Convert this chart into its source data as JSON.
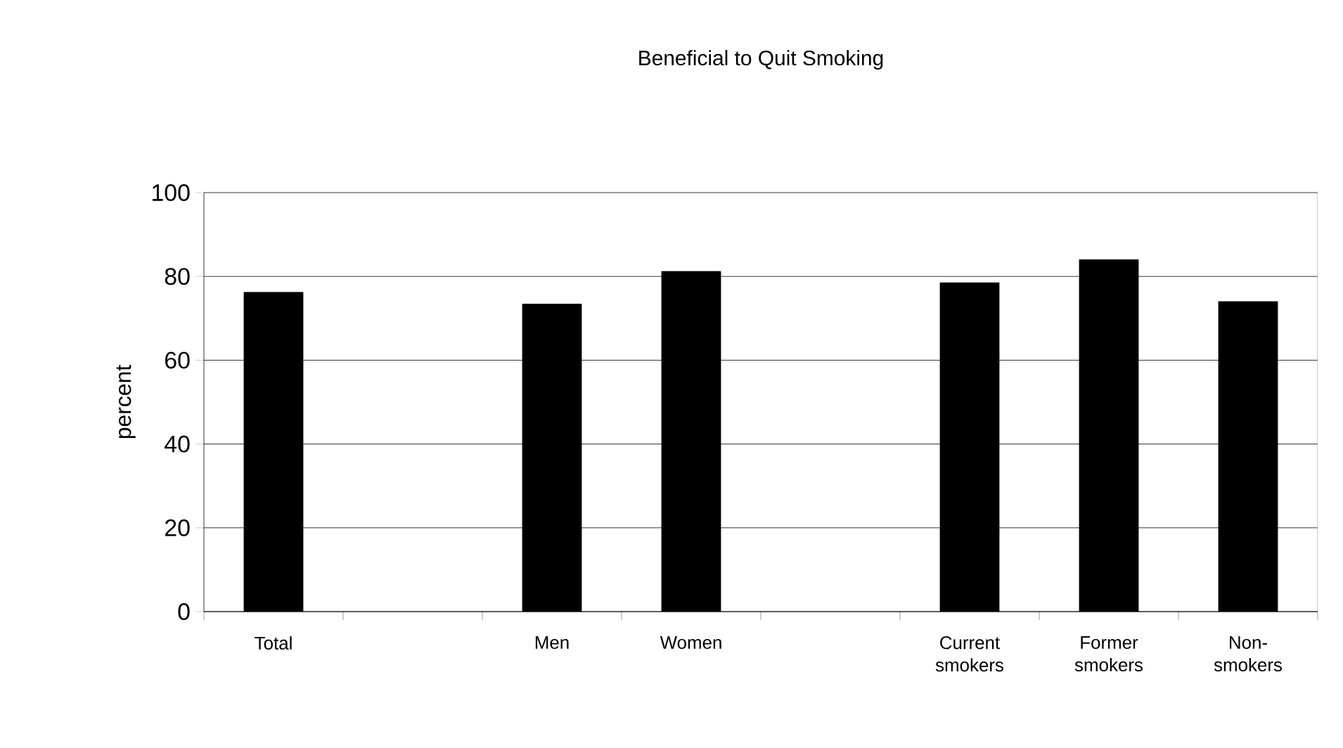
{
  "chart_data": {
    "type": "bar",
    "title": "Beneficial to Quit Smoking",
    "ylabel": "percent",
    "categories": [
      "Total",
      null,
      "Men",
      "Women",
      null,
      "Current smokers",
      "Former smokers",
      "Non-smokers"
    ],
    "values": [
      76.2,
      null,
      73.4,
      81.2,
      null,
      78.5,
      84.0,
      74.0
    ],
    "color": "#000000",
    "ylim": [
      0,
      100
    ],
    "yticks": [
      0,
      20,
      40,
      60,
      80,
      100
    ],
    "grid": "y"
  }
}
